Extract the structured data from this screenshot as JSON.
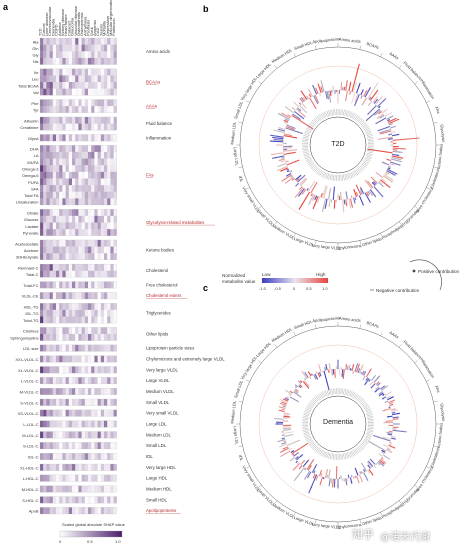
{
  "panel_labels": {
    "a": "a",
    "b": "b",
    "c": "c"
  },
  "watermark": {
    "left": "知乎",
    "right": "@诺米代谢"
  },
  "chart_data": [
    {
      "type": "heatmap",
      "title": "",
      "columns": [
        "T2D",
        "Cancer",
        "Liver disease",
        "Cerebrovascular",
        "Dementia",
        "COPD",
        "Asthma",
        "Kidney disease",
        "Heart failure",
        "Cataract",
        "Glaucoma",
        "Vascular disease",
        "Osteoarthritis",
        "Osteoporosis",
        "Arrhythmia",
        "Psoriasis",
        "Gout",
        "Anaemia",
        "CAD",
        "Sepsis",
        "Mortality",
        "Depression",
        "Macular degeneration",
        "Parkinson"
      ],
      "row_labels": [
        "Ala",
        "Gln",
        "Gly",
        "His",
        "Ile",
        "Leu",
        "Total BCAA",
        "Val",
        "Phe",
        "Tyr",
        "Albumin",
        "Creatinine",
        "GlycA",
        "DHA",
        "LA",
        "MUFA",
        "Omega-3",
        "Omega-6",
        "PUFA",
        "SFA",
        "Total FA",
        "Unsaturation",
        "Citrate",
        "Glucose",
        "Lactate",
        "Pyruvate",
        "Acetoacetate",
        "Acetone",
        "3OHbutyrate",
        "Remnant-C",
        "Total-C",
        "Total-FC",
        "VLDL-CE",
        "HDL-TG",
        "IDL-TG",
        "Total-TG",
        "Cholines",
        "Sphingomyelins",
        "LDL size",
        "XXL-VLDL-C",
        "XL-VLDL-C",
        "L-VLDL-C",
        "M-VLDL-C",
        "S-VLDL-C",
        "XS-VLDL-C",
        "L-LDL-C",
        "M-LDL-C",
        "S-LDL-C",
        "IDL-C",
        "XL-HDL-C",
        "L-HDL-C",
        "M-HDL-C",
        "S-HDL-C",
        "ApoB"
      ],
      "groups": [
        {
          "label": "Amino acids",
          "rows": 4,
          "red": false
        },
        {
          "label": "BCAAs",
          "rows": 4,
          "red": true
        },
        {
          "label": "AAAs",
          "rows": 2,
          "red": true
        },
        {
          "label": "Fluid balance",
          "rows": 2,
          "red": false
        },
        {
          "label": "Inflammation",
          "rows": 1,
          "red": false
        },
        {
          "label": "FAs",
          "rows": 9,
          "red": true
        },
        {
          "label": "Glycolysis-related metabolites",
          "rows": 4,
          "red": true
        },
        {
          "label": "Ketone bodies",
          "rows": 3,
          "red": false
        },
        {
          "label": "Cholesterol",
          "rows": 2,
          "red": false
        },
        {
          "label": "Free cholesterol",
          "rows": 1,
          "red": false
        },
        {
          "label": "Cholesterol esters",
          "rows": 1,
          "red": true
        },
        {
          "label": "Triglycerides",
          "rows": 3,
          "red": false
        },
        {
          "label": "Other lipids",
          "rows": 2,
          "red": false
        },
        {
          "label": "Lipoprotein particle sizes",
          "rows": 1,
          "red": false
        },
        {
          "label": "Chylomicrons and extremely large VLDL",
          "rows": 1,
          "red": false
        },
        {
          "label": "Very large VLDL",
          "rows": 1,
          "red": false
        },
        {
          "label": "Large VLDL",
          "rows": 1,
          "red": false
        },
        {
          "label": "Medium VLDL",
          "rows": 1,
          "red": false
        },
        {
          "label": "Small VLDL",
          "rows": 1,
          "red": false
        },
        {
          "label": "Very small VLDL",
          "rows": 1,
          "red": false
        },
        {
          "label": "Large LDL",
          "rows": 1,
          "red": false
        },
        {
          "label": "Medium LDL",
          "rows": 1,
          "red": false
        },
        {
          "label": "Small LDL",
          "rows": 1,
          "red": false
        },
        {
          "label": "IDL",
          "rows": 1,
          "red": false
        },
        {
          "label": "Very large HDL",
          "rows": 1,
          "red": false
        },
        {
          "label": "Large HDL",
          "rows": 1,
          "red": false
        },
        {
          "label": "Medium HDL",
          "rows": 1,
          "red": false
        },
        {
          "label": "Small HDL",
          "rows": 1,
          "red": false
        },
        {
          "label": "Apolipoproteins",
          "rows": 1,
          "red": true
        }
      ],
      "colorbar": {
        "label": "Scaled global absolute SHAP value",
        "ticks": [
          "0",
          "0.5",
          "1.0"
        ],
        "range": [
          0,
          1
        ],
        "color_low": "#ffffff",
        "color_high": "#4b1d6b"
      }
    },
    {
      "type": "radial",
      "title": "T2D",
      "center_label": "T2D",
      "sector_labels": [
        "Amino acids",
        "BCAAs",
        "AAAs",
        "Fluid balance",
        "Inflammation",
        "FAs",
        "Glycolysis",
        "Ketone bodies",
        "Cholesterol",
        "Free cholesterol",
        "Triglycerides",
        "Phospholipids",
        "Other lipids",
        "Chylomicrons",
        "Very large VLDL",
        "Large VLDL",
        "Medium VLDL",
        "Small VLDL",
        "Very small VLDL",
        "IDL",
        "Large LDL",
        "Medium LDL",
        "Small LDL",
        "Very large HDL",
        "Large HDL",
        "Medium HDL",
        "Small HDL",
        "Apolipoproteins"
      ],
      "legend": {
        "title": "Normalized metabolite value",
        "low": "Low",
        "high": "High",
        "ticks": [
          "-1.0",
          "-0.5",
          "0",
          "0.5",
          "1.0"
        ],
        "color_low": "#3b3dbf",
        "color_mid": "#e8e4ef",
        "color_high": "#e8443a"
      },
      "contribution_legend": {
        "positive": "Positive contribution",
        "negative": "Negative contribution"
      }
    },
    {
      "type": "radial",
      "title": "Dementia",
      "center_label": "Dementia",
      "sector_labels": [
        "Amino acids",
        "BCAAs",
        "AAAs",
        "Fluid balance",
        "Inflammation",
        "FAs",
        "Glycolysis",
        "Ketone bodies",
        "Cholesterol",
        "Free cholesterol",
        "Triglycerides",
        "Phospholipids",
        "Other lipids",
        "Chylomicrons",
        "Very large VLDL",
        "Large VLDL",
        "Medium VLDL",
        "Small VLDL",
        "Very small VLDL",
        "IDL",
        "Large LDL",
        "Medium LDL",
        "Small LDL",
        "Very large HDL",
        "Large HDL",
        "Medium HDL",
        "Small HDL",
        "Apolipoproteins"
      ]
    }
  ]
}
